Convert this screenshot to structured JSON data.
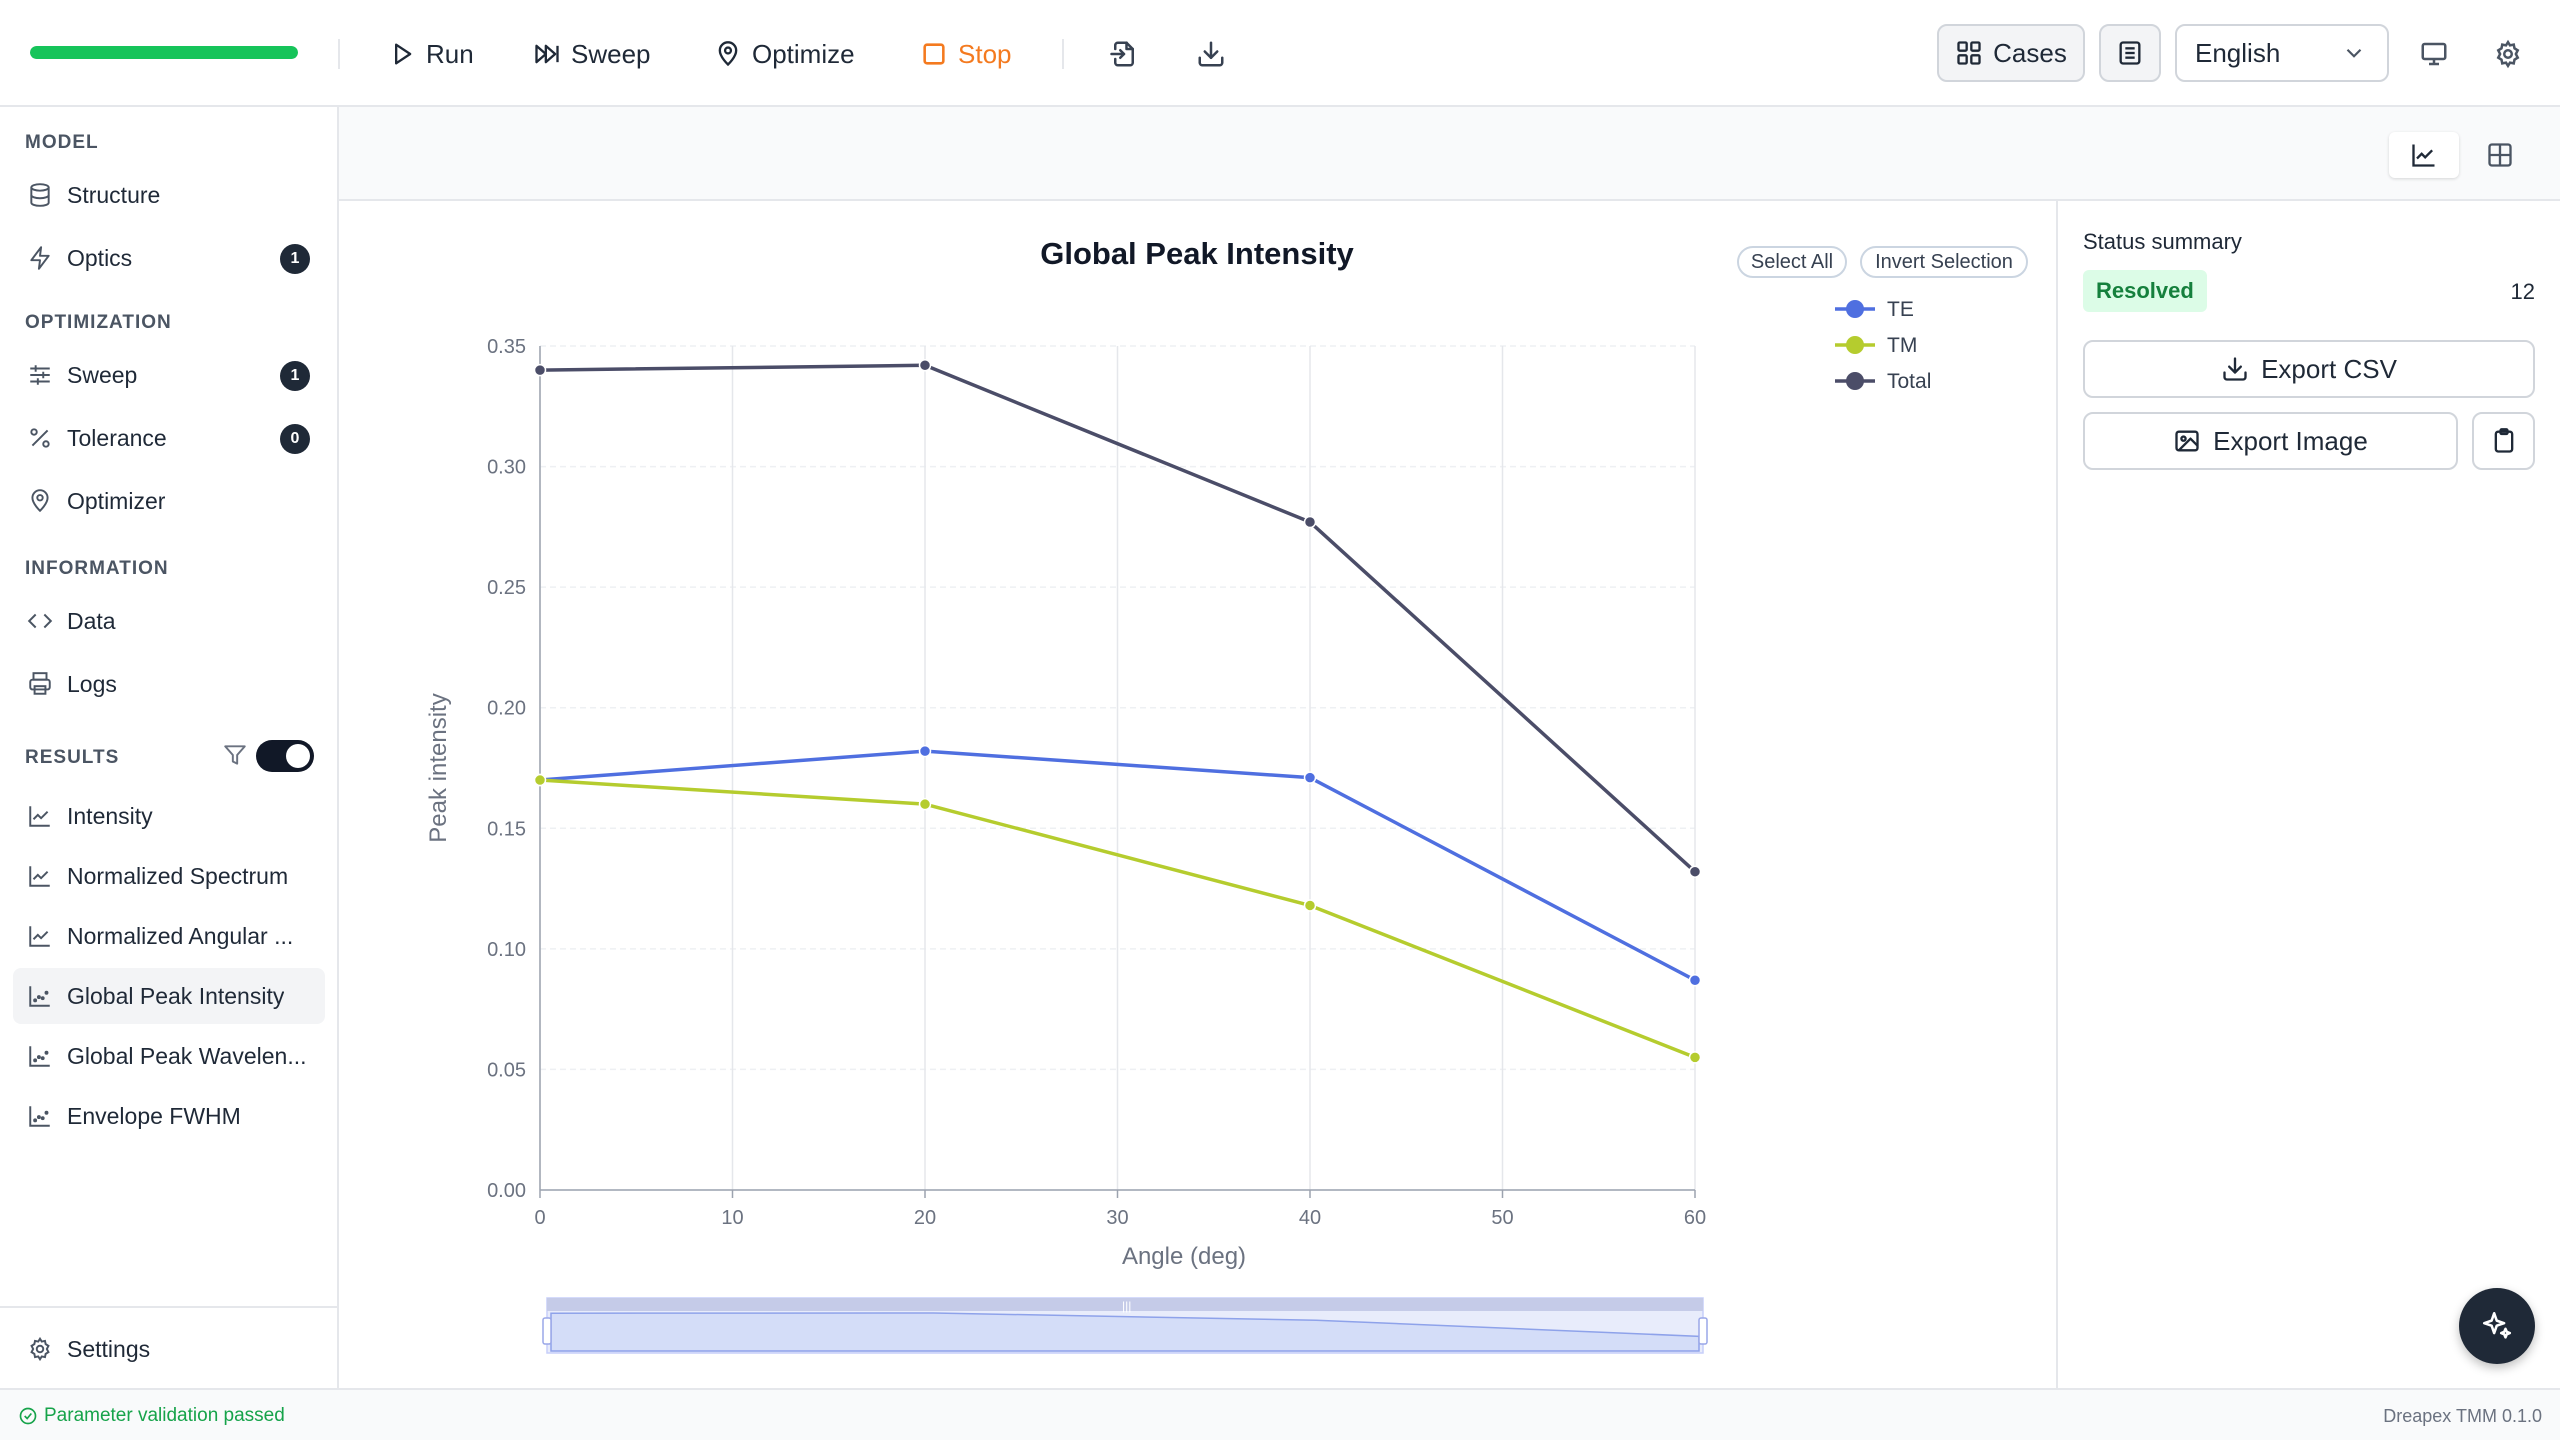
{
  "toolbar": {
    "progress": 1.0,
    "run_label": "Run",
    "sweep_label": "Sweep",
    "optimize_label": "Optimize",
    "stop_label": "Stop",
    "cases_label": "Cases",
    "language": "English",
    "icons": [
      "play-icon",
      "skip-forward-icon",
      "map-pin-icon",
      "stop-icon",
      "import-icon",
      "download-icon",
      "grid-icon",
      "document-icon",
      "chevron-down-icon",
      "monitor-icon",
      "gear-icon"
    ]
  },
  "sidebar": {
    "sections": [
      {
        "label": "MODEL",
        "items": [
          {
            "label": "Structure",
            "icon": "database-icon"
          },
          {
            "label": "Optics",
            "icon": "lightning-icon",
            "badge": "1"
          }
        ]
      },
      {
        "label": "OPTIMIZATION",
        "items": [
          {
            "label": "Sweep",
            "icon": "sliders-icon",
            "badge": "1"
          },
          {
            "label": "Tolerance",
            "icon": "percent-icon",
            "badge": "0"
          },
          {
            "label": "Optimizer",
            "icon": "map-pin-icon"
          }
        ]
      },
      {
        "label": "INFORMATION",
        "items": [
          {
            "label": "Data",
            "icon": "code-icon"
          },
          {
            "label": "Logs",
            "icon": "printer-icon"
          }
        ]
      },
      {
        "label": "RESULTS",
        "items": [
          {
            "label": "Intensity",
            "icon": "line-chart-icon"
          },
          {
            "label": "Normalized Spectrum",
            "icon": "line-chart-icon"
          },
          {
            "label": "Normalized Angular ...",
            "icon": "line-chart-icon"
          },
          {
            "label": "Global Peak Intensity",
            "icon": "scatter-chart-icon",
            "active": true
          },
          {
            "label": "Global Peak Wavelen...",
            "icon": "scatter-chart-icon"
          },
          {
            "label": "Envelope FWHM",
            "icon": "scatter-chart-icon"
          }
        ]
      }
    ],
    "results_toggle_on": true,
    "settings_label": "Settings"
  },
  "chart_controls": {
    "select_all": "Select All",
    "invert_selection": "Invert Selection"
  },
  "chart_data": {
    "type": "line",
    "title": "Global Peak Intensity",
    "xlabel": "Angle (deg)",
    "ylabel": "Peak intensity",
    "x": [
      0,
      20,
      40,
      60
    ],
    "xlim": [
      0,
      60
    ],
    "xticks": [
      "0",
      "10",
      "20",
      "30",
      "40",
      "50",
      "60"
    ],
    "ylim": [
      0,
      0.35
    ],
    "yticks": [
      "0.00",
      "0.05",
      "0.10",
      "0.15",
      "0.20",
      "0.25",
      "0.30",
      "0.35"
    ],
    "grid": true,
    "legend_position": "top-right",
    "series": [
      {
        "name": "TE",
        "color": "#4f6fe0",
        "values": [
          0.17,
          0.182,
          0.171,
          0.087
        ]
      },
      {
        "name": "TM",
        "color": "#b5cc2e",
        "values": [
          0.17,
          0.16,
          0.118,
          0.055
        ]
      },
      {
        "name": "Total",
        "color": "#4b4d68",
        "values": [
          0.34,
          0.342,
          0.277,
          0.132
        ]
      }
    ]
  },
  "status_panel": {
    "title": "Status summary",
    "status": "Resolved",
    "count": "12",
    "export_csv": "Export CSV",
    "export_image": "Export Image"
  },
  "footer": {
    "status": "Parameter validation passed",
    "version": "Dreapex TMM 0.1.0"
  }
}
